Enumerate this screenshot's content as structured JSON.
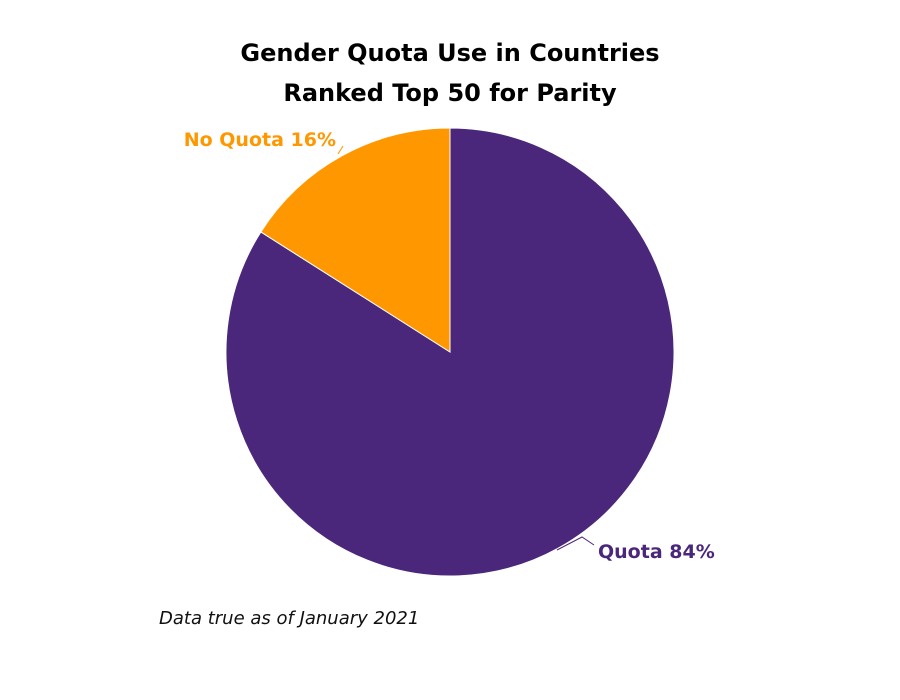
{
  "chart_data": {
    "type": "pie",
    "title_lines": [
      "Gender Quota Use in Countries",
      "Ranked Top 50 for Parity"
    ],
    "slices": [
      {
        "label": "Quota",
        "display_value": "84%",
        "value": 84,
        "color": "#4a277a"
      },
      {
        "label": "No Quota",
        "display_value": "16%",
        "value": 16,
        "color": "#ff9800"
      }
    ]
  },
  "footnote": "Data true as of January 2021"
}
